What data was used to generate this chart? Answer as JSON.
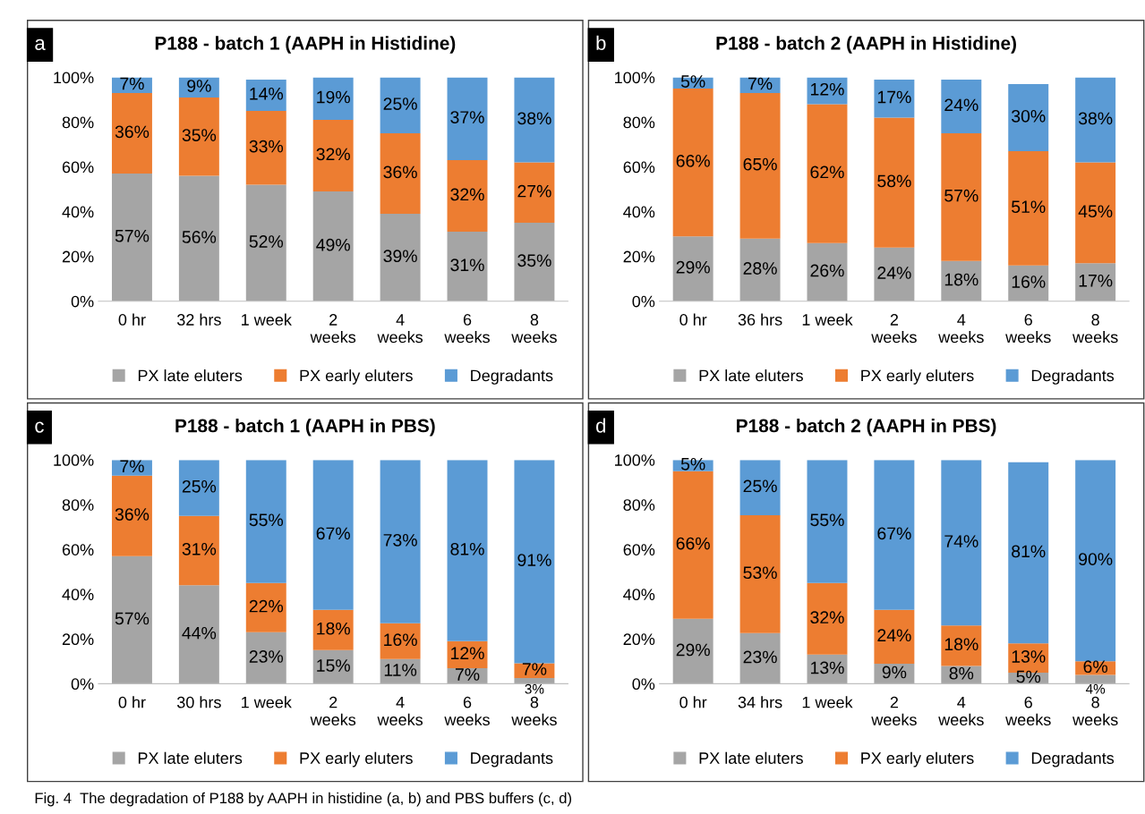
{
  "chart_data": [
    {
      "type": "bar",
      "stacked": true,
      "title": "P188 - batch 1 (AAPH in Histidine)",
      "annotations": [
        "a"
      ],
      "categories": [
        "0 hr",
        "32 hrs",
        "1 week",
        "2\nweeks",
        "4\nweeks",
        "6\nweeks",
        "8\nweeks"
      ],
      "ylim": [
        0,
        100
      ],
      "yticks": [
        {
          "value": 0,
          "label": "0%"
        },
        {
          "value": 20,
          "label": "20%"
        },
        {
          "value": 40,
          "label": "40%"
        },
        {
          "value": 60,
          "label": "60%"
        },
        {
          "value": 80,
          "label": "80%"
        },
        {
          "value": 100,
          "label": "100%"
        }
      ],
      "legend": "bottom",
      "series": [
        {
          "name": "PX late eluters",
          "color": "#a5a5a5",
          "values": [
            57,
            56,
            52,
            49,
            39,
            31,
            35
          ],
          "value_labels": [
            "57%",
            "56%",
            "52%",
            "49%",
            "39%",
            "31%",
            "35%"
          ]
        },
        {
          "name": "PX early eluters",
          "color": "#ed7d31",
          "values": [
            36,
            35,
            33,
            32,
            36,
            32,
            27
          ],
          "value_labels": [
            "36%",
            "35%",
            "33%",
            "32%",
            "36%",
            "32%",
            "27%"
          ]
        },
        {
          "name": "Degradants",
          "color": "#5b9bd5",
          "values": [
            7,
            9,
            14,
            19,
            25,
            37,
            38
          ],
          "value_labels": [
            "7%",
            "9%",
            "14%",
            "19%",
            "25%",
            "37%",
            "38%"
          ]
        }
      ]
    },
    {
      "type": "bar",
      "stacked": true,
      "title": "P188 - batch 2 (AAPH in Histidine)",
      "annotations": [
        "b"
      ],
      "categories": [
        "0 hr",
        "36 hrs",
        "1 week",
        "2\nweeks",
        "4\nweeks",
        "6\nweeks",
        "8\nweeks"
      ],
      "ylim": [
        0,
        100
      ],
      "yticks": [
        {
          "value": 0,
          "label": "0%"
        },
        {
          "value": 20,
          "label": "20%"
        },
        {
          "value": 40,
          "label": "40%"
        },
        {
          "value": 60,
          "label": "60%"
        },
        {
          "value": 80,
          "label": "80%"
        },
        {
          "value": 100,
          "label": "100%"
        }
      ],
      "legend": "bottom",
      "series": [
        {
          "name": "PX late eluters",
          "color": "#a5a5a5",
          "values": [
            29,
            28,
            26,
            24,
            18,
            16,
            17
          ],
          "value_labels": [
            "29%",
            "28%",
            "26%",
            "24%",
            "18%",
            "16%",
            "17%"
          ]
        },
        {
          "name": "PX early eluters",
          "color": "#ed7d31",
          "values": [
            66,
            65,
            62,
            58,
            57,
            51,
            45
          ],
          "value_labels": [
            "66%",
            "65%",
            "62%",
            "58%",
            "57%",
            "51%",
            "45%"
          ]
        },
        {
          "name": "Degradants",
          "color": "#5b9bd5",
          "values": [
            5,
            7,
            12,
            17,
            24,
            30,
            38
          ],
          "value_labels": [
            "5%",
            "7%",
            "12%",
            "17%",
            "24%",
            "30%",
            "38%"
          ]
        }
      ]
    },
    {
      "type": "bar",
      "stacked": true,
      "title": "P188 - batch 1 (AAPH in PBS)",
      "annotations": [
        "c"
      ],
      "categories": [
        "0 hr",
        "30 hrs",
        "1 week",
        "2\nweeks",
        "4\nweeks",
        "6\nweeks",
        "8\nweeks"
      ],
      "ylim": [
        0,
        100
      ],
      "yticks": [
        {
          "value": 0,
          "label": "0%"
        },
        {
          "value": 20,
          "label": "20%"
        },
        {
          "value": 40,
          "label": "40%"
        },
        {
          "value": 60,
          "label": "60%"
        },
        {
          "value": 80,
          "label": "80%"
        },
        {
          "value": 100,
          "label": "100%"
        }
      ],
      "legend": "bottom",
      "series": [
        {
          "name": "PX late eluters",
          "color": "#a5a5a5",
          "values": [
            57,
            44,
            23,
            15,
            11,
            7,
            2.6
          ],
          "value_labels": [
            "57%",
            "44%",
            "23%",
            "15%",
            "11%",
            "7%",
            "3%"
          ]
        },
        {
          "name": "PX early eluters",
          "color": "#ed7d31",
          "values": [
            36,
            31,
            22,
            18,
            16,
            12,
            6.6
          ],
          "value_labels": [
            "36%",
            "31%",
            "22%",
            "18%",
            "16%",
            "12%",
            "7%"
          ]
        },
        {
          "name": "Degradants",
          "color": "#5b9bd5",
          "values": [
            7,
            25,
            55,
            67,
            73,
            81,
            90.8
          ],
          "value_labels": [
            "7%",
            "25%",
            "55%",
            "67%",
            "73%",
            "81%",
            "91%"
          ]
        }
      ]
    },
    {
      "type": "bar",
      "stacked": true,
      "title": "P188 - batch 2 (AAPH in PBS)",
      "annotations": [
        "d",
        "Fig. 4  The degradation of P188 by AAPH in histidine (a, b) and PBS buffers (c, d)"
      ],
      "categories": [
        "0 hr",
        "34 hrs",
        "1 week",
        "2\nweeks",
        "4\nweeks",
        "6\nweeks",
        "8\nweeks"
      ],
      "ylim": [
        0,
        100
      ],
      "yticks": [
        {
          "value": 0,
          "label": "0%"
        },
        {
          "value": 20,
          "label": "20%"
        },
        {
          "value": 40,
          "label": "40%"
        },
        {
          "value": 60,
          "label": "60%"
        },
        {
          "value": 80,
          "label": "80%"
        },
        {
          "value": 100,
          "label": "100%"
        }
      ],
      "legend": "bottom",
      "series": [
        {
          "name": "PX late eluters",
          "color": "#a5a5a5",
          "values": [
            29,
            22.6,
            13,
            9,
            8,
            5,
            4
          ],
          "value_labels": [
            "29%",
            "23%",
            "13%",
            "9%",
            "8%",
            "5%",
            "4%"
          ]
        },
        {
          "name": "PX early eluters",
          "color": "#ed7d31",
          "values": [
            66,
            52.7,
            32,
            24,
            18,
            13,
            6
          ],
          "value_labels": [
            "66%",
            "53%",
            "32%",
            "24%",
            "18%",
            "13%",
            "6%"
          ]
        },
        {
          "name": "Degradants",
          "color": "#5b9bd5",
          "values": [
            5,
            24.7,
            55,
            67,
            74,
            81,
            90
          ],
          "value_labels": [
            "5%",
            "25%",
            "55%",
            "67%",
            "74%",
            "81%",
            "90%"
          ]
        }
      ]
    }
  ]
}
